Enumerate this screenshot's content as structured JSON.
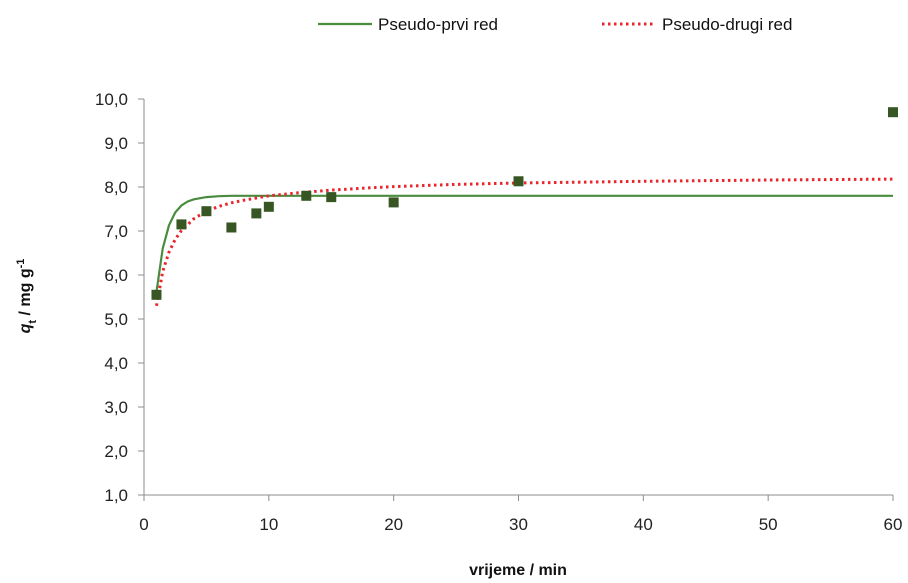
{
  "chart_data": {
    "type": "scatter",
    "xlabel": "vrijeme / min",
    "ylabel": {
      "q": "q",
      "sub": "t",
      "rest": " / mg g",
      "sup": "-1"
    },
    "xlim": [
      0,
      60
    ],
    "ylim": [
      1.0,
      10.0
    ],
    "x_ticks": [
      0,
      10,
      20,
      30,
      40,
      50,
      60
    ],
    "x_tick_labels": [
      "0",
      "10",
      "20",
      "30",
      "40",
      "50",
      "60"
    ],
    "y_ticks": [
      1.0,
      2.0,
      3.0,
      4.0,
      5.0,
      6.0,
      7.0,
      8.0,
      9.0,
      10.0
    ],
    "y_tick_labels": [
      "1,0",
      "2,0",
      "3,0",
      "4,0",
      "5,0",
      "6,0",
      "7,0",
      "8,0",
      "9,0",
      "10,0"
    ],
    "grid": false,
    "legend_position": "top",
    "scatter": {
      "color": "#375623",
      "marker": "square",
      "points": [
        {
          "x": 1,
          "y": 5.55
        },
        {
          "x": 3,
          "y": 7.15
        },
        {
          "x": 5,
          "y": 7.45
        },
        {
          "x": 7,
          "y": 7.08
        },
        {
          "x": 9,
          "y": 7.4
        },
        {
          "x": 10,
          "y": 7.55
        },
        {
          "x": 13,
          "y": 7.8
        },
        {
          "x": 15,
          "y": 7.77
        },
        {
          "x": 20,
          "y": 7.65
        },
        {
          "x": 30,
          "y": 8.13
        },
        {
          "x": 60,
          "y": 9.7
        }
      ]
    },
    "series": [
      {
        "name": "Pseudo-prvi red",
        "style": "solid",
        "color": "#4a8c3f",
        "x": [
          1,
          1.5,
          2,
          2.5,
          3,
          3.5,
          4,
          5,
          6,
          7,
          8,
          10,
          12,
          15,
          20,
          25,
          30,
          40,
          50,
          60
        ],
        "y": [
          5.62,
          6.6,
          7.13,
          7.42,
          7.58,
          7.67,
          7.72,
          7.77,
          7.79,
          7.8,
          7.8,
          7.8,
          7.8,
          7.8,
          7.8,
          7.8,
          7.8,
          7.8,
          7.8,
          7.8
        ]
      },
      {
        "name": "Pseudo-drugi red",
        "style": "dotted",
        "color": "#e8262c",
        "x": [
          1,
          1.5,
          2,
          2.5,
          3,
          4,
          5,
          6,
          7,
          8,
          10,
          12,
          15,
          18,
          20,
          25,
          30,
          40,
          50,
          60
        ],
        "y": [
          5.3,
          6.08,
          6.52,
          6.81,
          7.01,
          7.28,
          7.45,
          7.56,
          7.64,
          7.7,
          7.8,
          7.86,
          7.93,
          7.98,
          8.01,
          8.06,
          8.09,
          8.13,
          8.16,
          8.18
        ]
      }
    ]
  }
}
